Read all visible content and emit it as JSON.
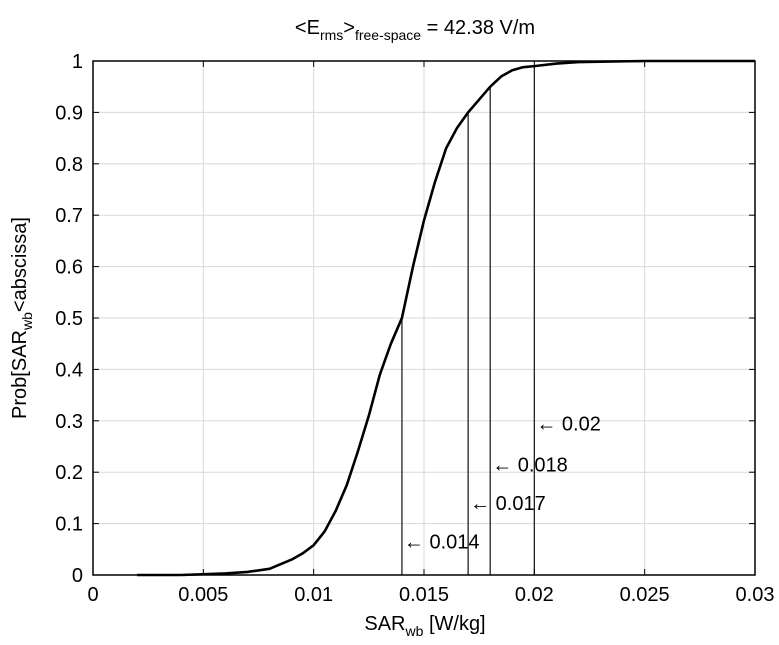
{
  "chart_data": {
    "type": "line",
    "title": {
      "prefix": "<E",
      "sub": "rms",
      "mid": ">",
      "sub2": "free-space",
      "suffix": " = 42.38 V/m"
    },
    "xlabel": {
      "main": "SAR",
      "sub": "wb",
      "suffix": " [W/kg]"
    },
    "ylabel": {
      "main": "Prob[SAR",
      "sub": "wb",
      "suffix": "<abscissa]"
    },
    "xlim": [
      0,
      0.03
    ],
    "ylim": [
      0,
      1
    ],
    "x_ticks": [
      "0",
      "0.005",
      "0.01",
      "0.015",
      "0.02",
      "0.025",
      "0.03"
    ],
    "y_ticks": [
      "0",
      "0.1",
      "0.2",
      "0.3",
      "0.4",
      "0.5",
      "0.6",
      "0.7",
      "0.8",
      "0.9",
      "1"
    ],
    "grid": true,
    "series": [
      {
        "x": [
          0.002,
          0.004,
          0.006,
          0.007,
          0.008,
          0.009,
          0.0095,
          0.01,
          0.0105,
          0.011,
          0.0115,
          0.012,
          0.0125,
          0.013,
          0.0135,
          0.014,
          0.0145,
          0.015,
          0.0155,
          0.016,
          0.0165,
          0.017,
          0.0175,
          0.018,
          0.0185,
          0.019,
          0.0195,
          0.02,
          0.021,
          0.022,
          0.025,
          0.03
        ],
        "y": [
          0,
          0,
          0.003,
          0.006,
          0.012,
          0.03,
          0.042,
          0.058,
          0.085,
          0.125,
          0.175,
          0.24,
          0.31,
          0.39,
          0.45,
          0.5,
          0.6,
          0.69,
          0.765,
          0.83,
          0.87,
          0.9,
          0.925,
          0.95,
          0.97,
          0.982,
          0.988,
          0.99,
          0.995,
          0.998,
          1.0,
          1.0
        ]
      }
    ],
    "annotations": [
      {
        "text": "0.014",
        "x": 0.014,
        "y_top": 0.5,
        "label_y": 0.065
      },
      {
        "text": "0.017",
        "x": 0.017,
        "y_top": 0.9,
        "label_y": 0.14
      },
      {
        "text": "0.018",
        "x": 0.018,
        "y_top": 0.95,
        "label_y": 0.215
      },
      {
        "text": "0.02",
        "x": 0.02,
        "y_top": 0.99,
        "label_y": 0.295
      }
    ],
    "arrow_glyph": "←"
  }
}
